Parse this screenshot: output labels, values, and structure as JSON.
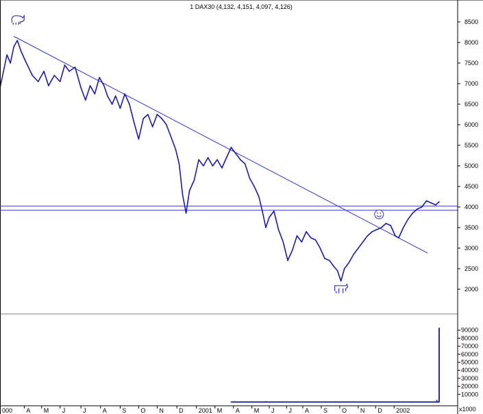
{
  "chart_data": {
    "type": "line",
    "title": "1 DAX30 (4,132, 4,151, 4,097, 4,126)",
    "colors": {
      "price": "#1a1aa8",
      "lines": "#3333cc",
      "volume": "#2a2aa0"
    },
    "price": {
      "ylim": [
        1700,
        8700
      ],
      "yticks": [
        2000,
        2500,
        3000,
        3500,
        4000,
        4500,
        5000,
        5500,
        6000,
        6500,
        7000,
        7500,
        8000,
        8500
      ],
      "ytick_labels": [
        "2000",
        "2500",
        "3000",
        "3500",
        "4000",
        "4500",
        "5000",
        "5500",
        "6000",
        "6500",
        "7000",
        "7500",
        "8000",
        "8500"
      ],
      "series": [
        {
          "x": 0,
          "y": 6900
        },
        {
          "x": 0.03,
          "y": 7300
        },
        {
          "x": 0.06,
          "y": 7700
        },
        {
          "x": 0.09,
          "y": 7500
        },
        {
          "x": 0.12,
          "y": 7900
        },
        {
          "x": 0.15,
          "y": 8050
        },
        {
          "x": 0.18,
          "y": 7800
        },
        {
          "x": 0.22,
          "y": 7550
        },
        {
          "x": 0.28,
          "y": 7200
        },
        {
          "x": 0.33,
          "y": 7050
        },
        {
          "x": 0.38,
          "y": 7300
        },
        {
          "x": 0.42,
          "y": 6950
        },
        {
          "x": 0.47,
          "y": 7200
        },
        {
          "x": 0.52,
          "y": 7050
        },
        {
          "x": 0.56,
          "y": 7450
        },
        {
          "x": 0.6,
          "y": 7300
        },
        {
          "x": 0.65,
          "y": 7400
        },
        {
          "x": 0.7,
          "y": 6900
        },
        {
          "x": 0.74,
          "y": 6600
        },
        {
          "x": 0.78,
          "y": 6950
        },
        {
          "x": 0.82,
          "y": 6750
        },
        {
          "x": 0.86,
          "y": 7150
        },
        {
          "x": 0.9,
          "y": 6950
        },
        {
          "x": 0.93,
          "y": 6700
        },
        {
          "x": 0.97,
          "y": 6500
        },
        {
          "x": 1.0,
          "y": 6700
        },
        {
          "x": 1.04,
          "y": 6400
        },
        {
          "x": 1.08,
          "y": 6750
        },
        {
          "x": 1.12,
          "y": 6500
        },
        {
          "x": 1.16,
          "y": 6050
        },
        {
          "x": 1.2,
          "y": 5650
        },
        {
          "x": 1.24,
          "y": 6150
        },
        {
          "x": 1.28,
          "y": 6250
        },
        {
          "x": 1.32,
          "y": 5950
        },
        {
          "x": 1.36,
          "y": 6250
        },
        {
          "x": 1.4,
          "y": 6150
        },
        {
          "x": 1.44,
          "y": 6000
        },
        {
          "x": 1.48,
          "y": 5700
        },
        {
          "x": 1.52,
          "y": 5400
        },
        {
          "x": 1.55,
          "y": 5050
        },
        {
          "x": 1.58,
          "y": 4300
        },
        {
          "x": 1.61,
          "y": 3850
        },
        {
          "x": 1.64,
          "y": 4400
        },
        {
          "x": 1.68,
          "y": 4650
        },
        {
          "x": 1.72,
          "y": 5150
        },
        {
          "x": 1.76,
          "y": 5000
        },
        {
          "x": 1.8,
          "y": 5200
        },
        {
          "x": 1.84,
          "y": 5000
        },
        {
          "x": 1.88,
          "y": 5150
        },
        {
          "x": 1.92,
          "y": 4950
        },
        {
          "x": 1.96,
          "y": 5200
        },
        {
          "x": 2.0,
          "y": 5450
        },
        {
          "x": 2.04,
          "y": 5300
        },
        {
          "x": 2.08,
          "y": 5150
        },
        {
          "x": 2.12,
          "y": 5050
        },
        {
          "x": 2.16,
          "y": 4700
        },
        {
          "x": 2.2,
          "y": 4500
        },
        {
          "x": 2.24,
          "y": 4250
        },
        {
          "x": 2.27,
          "y": 3900
        },
        {
          "x": 2.3,
          "y": 3500
        },
        {
          "x": 2.33,
          "y": 3750
        },
        {
          "x": 2.37,
          "y": 3900
        },
        {
          "x": 2.41,
          "y": 3450
        },
        {
          "x": 2.45,
          "y": 3150
        },
        {
          "x": 2.49,
          "y": 2700
        },
        {
          "x": 2.53,
          "y": 2950
        },
        {
          "x": 2.57,
          "y": 3300
        },
        {
          "x": 2.61,
          "y": 3150
        },
        {
          "x": 2.65,
          "y": 3400
        },
        {
          "x": 2.69,
          "y": 3250
        },
        {
          "x": 2.73,
          "y": 3200
        },
        {
          "x": 2.77,
          "y": 3000
        },
        {
          "x": 2.81,
          "y": 2750
        },
        {
          "x": 2.85,
          "y": 2700
        },
        {
          "x": 2.89,
          "y": 2550
        },
        {
          "x": 2.92,
          "y": 2450
        },
        {
          "x": 2.95,
          "y": 2200
        },
        {
          "x": 2.98,
          "y": 2500
        },
        {
          "x": 3.02,
          "y": 2650
        },
        {
          "x": 3.06,
          "y": 2850
        },
        {
          "x": 3.1,
          "y": 3000
        },
        {
          "x": 3.14,
          "y": 3150
        },
        {
          "x": 3.18,
          "y": 3300
        },
        {
          "x": 3.22,
          "y": 3400
        },
        {
          "x": 3.26,
          "y": 3450
        },
        {
          "x": 3.3,
          "y": 3500
        },
        {
          "x": 3.34,
          "y": 3600
        },
        {
          "x": 3.38,
          "y": 3550
        },
        {
          "x": 3.42,
          "y": 3300
        },
        {
          "x": 3.45,
          "y": 3250
        },
        {
          "x": 3.49,
          "y": 3500
        },
        {
          "x": 3.53,
          "y": 3700
        },
        {
          "x": 3.57,
          "y": 3850
        },
        {
          "x": 3.61,
          "y": 3950
        },
        {
          "x": 3.65,
          "y": 4000
        },
        {
          "x": 3.69,
          "y": 4150
        },
        {
          "x": 3.73,
          "y": 4100
        },
        {
          "x": 3.77,
          "y": 4050
        },
        {
          "x": 3.8,
          "y": 4126
        }
      ],
      "trendline": {
        "from": {
          "x": 0.12,
          "y": 8150
        },
        "to": {
          "x": 3.7,
          "y": 2880
        }
      },
      "hlines": [
        4020,
        3920
      ],
      "annotations": [
        {
          "name": "bull-icon",
          "x": 0.15,
          "y": 8550
        },
        {
          "name": "smiley-icon",
          "x": 3.28,
          "y": 3820
        },
        {
          "name": "bear-icon",
          "x": 2.95,
          "y": 2020
        }
      ]
    },
    "volume": {
      "ylim": [
        0,
        100000
      ],
      "yticks": [
        10000,
        20000,
        30000,
        40000,
        50000,
        60000,
        70000,
        80000,
        90000
      ],
      "ytick_labels": [
        "10000",
        "20000",
        "30000",
        "40000",
        "50000",
        "60000",
        "70000",
        "80000",
        "90000"
      ],
      "unit_label": "x1000",
      "series": [
        {
          "x": 2.0,
          "y": 900
        },
        {
          "x": 2.3,
          "y": 1500
        },
        {
          "x": 2.6,
          "y": 1200
        },
        {
          "x": 2.9,
          "y": 1400
        },
        {
          "x": 3.2,
          "y": 1100
        },
        {
          "x": 3.5,
          "y": 1300
        },
        {
          "x": 3.78,
          "y": 3000
        },
        {
          "x": 3.8,
          "y": 93000
        }
      ]
    },
    "x_axis": {
      "xlim": [
        0,
        3.96
      ],
      "ticks": [
        {
          "x": 0.0,
          "label": "000"
        },
        {
          "x": 0.21,
          "label": "A"
        },
        {
          "x": 0.36,
          "label": "M"
        },
        {
          "x": 0.52,
          "label": "J"
        },
        {
          "x": 0.7,
          "label": "J"
        },
        {
          "x": 0.87,
          "label": "A"
        },
        {
          "x": 1.04,
          "label": "S"
        },
        {
          "x": 1.2,
          "label": "O"
        },
        {
          "x": 1.36,
          "label": "N"
        },
        {
          "x": 1.53,
          "label": "D"
        },
        {
          "x": 1.7,
          "label": "2001"
        },
        {
          "x": 1.86,
          "label": "M"
        },
        {
          "x": 2.02,
          "label": "A"
        },
        {
          "x": 2.18,
          "label": "M"
        },
        {
          "x": 2.33,
          "label": "J"
        },
        {
          "x": 2.48,
          "label": "J"
        },
        {
          "x": 2.62,
          "label": "A"
        },
        {
          "x": 2.78,
          "label": "S"
        },
        {
          "x": 2.94,
          "label": "O"
        },
        {
          "x": 3.1,
          "label": "N"
        },
        {
          "x": 3.25,
          "label": "D"
        },
        {
          "x": 3.41,
          "label": "2002"
        }
      ]
    }
  }
}
